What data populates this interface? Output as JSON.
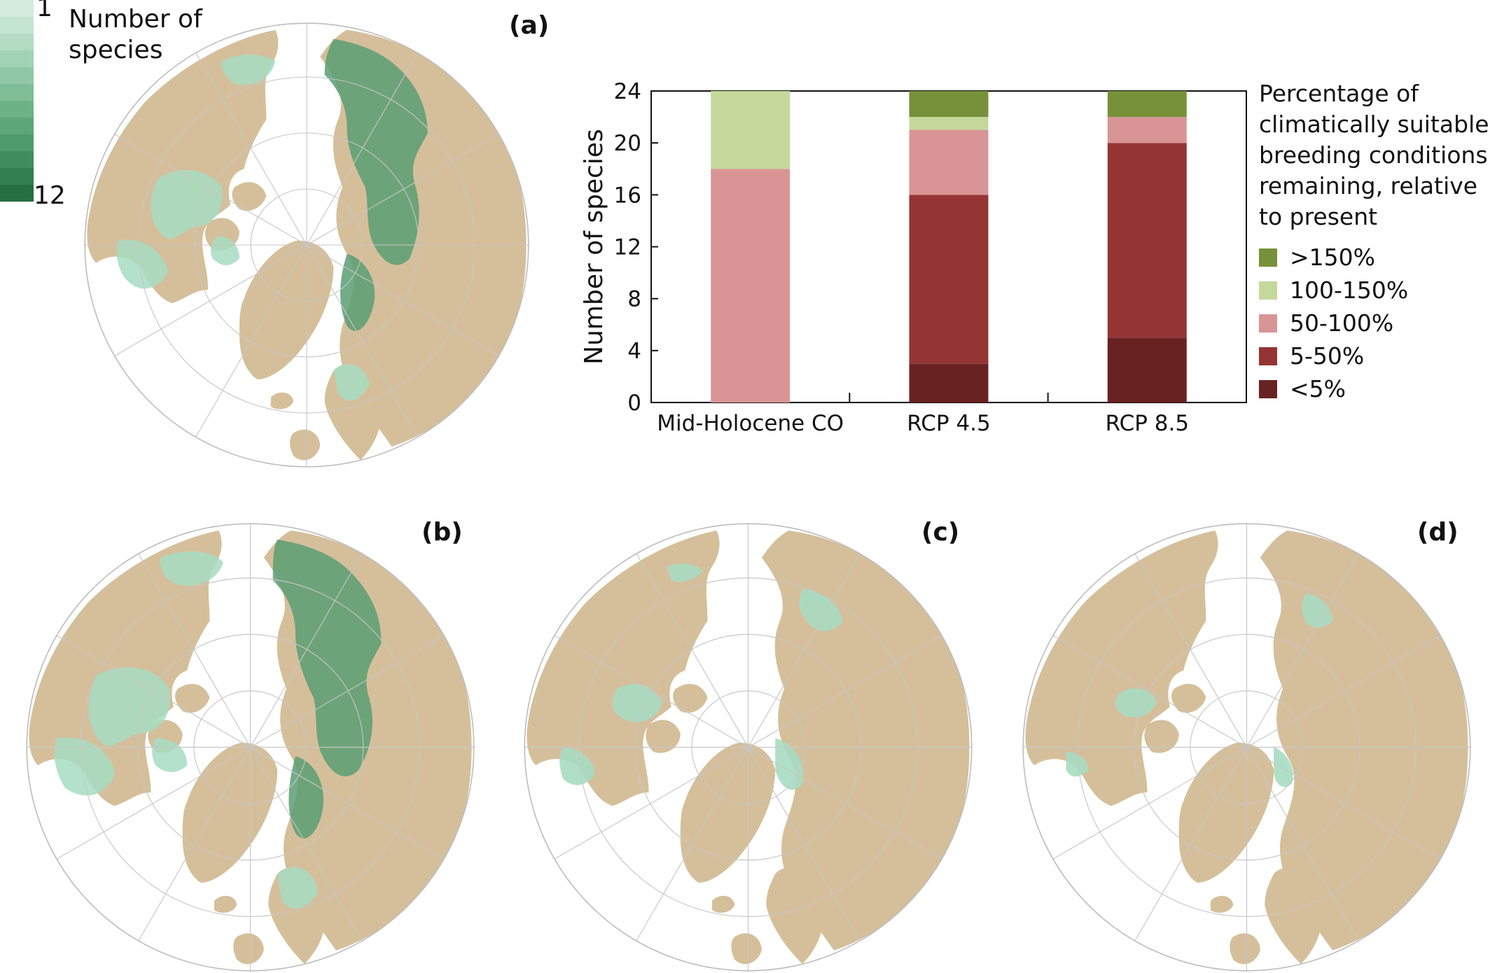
{
  "colorbar": {
    "title": "Number of species",
    "min_label": "1",
    "max_label": "12",
    "colors": [
      "#d3ecdd",
      "#c4e5d1",
      "#b3dcc3",
      "#a2d2b5",
      "#90c8a5",
      "#7ebd96",
      "#6db287",
      "#5da679",
      "#4e9a6b",
      "#3f8d5d",
      "#327f4f",
      "#256f42"
    ]
  },
  "panels": {
    "a": "(a)",
    "b": "(b)",
    "c": "(c)",
    "d": "(d)"
  },
  "map_colors": {
    "ocean": "#ffffff",
    "land": "#d5bf9b",
    "species": "#a7dcc2",
    "species_dense": "#5b9d73",
    "graticule": "#c6c6c6"
  },
  "chart_data": {
    "type": "bar",
    "stacked": true,
    "categories": [
      "Mid-Holocene CO",
      "RCP 4.5",
      "RCP 8.5"
    ],
    "ylabel": "Number of species",
    "ylim": [
      0,
      24
    ],
    "yticks": [
      0,
      4,
      8,
      12,
      16,
      20,
      24
    ],
    "legend_title": "Percentage of climatically suitable breeding conditions remaining, relative to present",
    "series": [
      {
        "name": "<5%",
        "color": "#692222",
        "values": [
          0,
          3,
          5
        ]
      },
      {
        "name": "5-50%",
        "color": "#943534",
        "values": [
          0,
          13,
          15
        ]
      },
      {
        "name": "50-100%",
        "color": "#d99595",
        "values": [
          18,
          5,
          2
        ]
      },
      {
        "name": "100-150%",
        "color": "#c4d89c",
        "values": [
          6,
          1,
          0
        ]
      },
      {
        "name": ">150%",
        "color": "#76913a",
        "values": [
          0,
          2,
          2
        ]
      }
    ]
  }
}
